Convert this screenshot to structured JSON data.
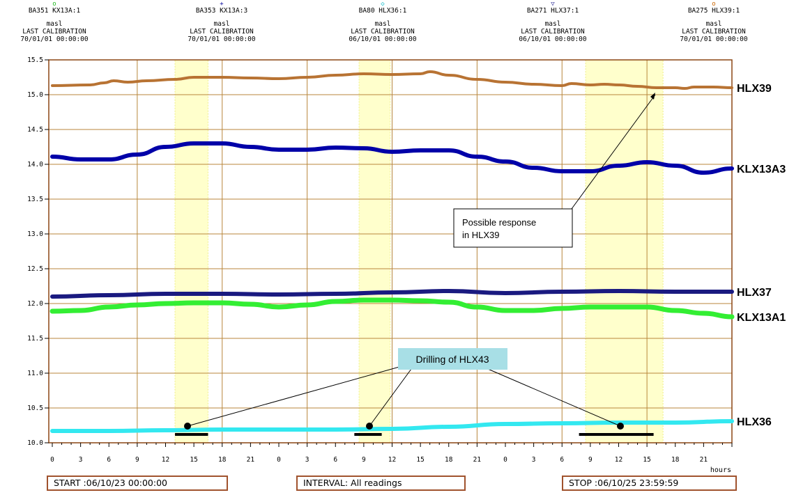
{
  "headers": [
    {
      "symbol": "o",
      "symbol_color": "#22bb22",
      "name": "BA351 KX13A:1",
      "unit": "masl",
      "cal_label": "LAST CALIBRATION",
      "cal_date": "70/01/01 00:00:00"
    },
    {
      "symbol": "+",
      "symbol_color": "#000099",
      "name": "BA353 KX13A:3",
      "unit": "masl",
      "cal_label": "LAST CALIBRATION",
      "cal_date": "70/01/01 00:00:00"
    },
    {
      "symbol": "◇",
      "symbol_color": "#00b8c8",
      "name": "BA80  HLX36:1",
      "unit": "masl",
      "cal_label": "LAST CALIBRATION",
      "cal_date": "06/10/01 00:00:00"
    },
    {
      "symbol": "▽",
      "symbol_color": "#333399",
      "name": "BA271 HLX37:1",
      "unit": "masl",
      "cal_label": "LAST CALIBRATION",
      "cal_date": "06/10/01 00:00:00"
    },
    {
      "symbol": "o",
      "symbol_color": "#cc6600",
      "name": "BA275 HLX39:1",
      "unit": "masl",
      "cal_label": "LAST CALIBRATION",
      "cal_date": "70/01/01 00:00:00"
    }
  ],
  "footer": {
    "start": "START :06/10/23 00:00:00",
    "interval": "INTERVAL: All readings",
    "stop": "STOP :06/10/25 23:59:59"
  },
  "annotations": {
    "response": "Possible response\nin HLX39",
    "drilling": "Drilling of HLX43"
  },
  "chart_data": {
    "type": "line",
    "ylim": [
      10.0,
      15.5
    ],
    "yticks": [
      "10.0",
      "10.5",
      "11.0",
      "11.5",
      "12.0",
      "12.5",
      "13.0",
      "13.5",
      "14.0",
      "14.5",
      "15.0",
      "15.5"
    ],
    "xlim": [
      0,
      72
    ],
    "xtick_labels": [
      "0",
      "3",
      "6",
      "9",
      "12",
      "15",
      "18",
      "21",
      "0",
      "3",
      "6",
      "9",
      "12",
      "15",
      "18",
      "21",
      "0",
      "3",
      "6",
      "9",
      "12",
      "15",
      "18",
      "21"
    ],
    "xunit": "hours",
    "grid": true,
    "drilling_periods": [
      [
        13,
        16.5
      ],
      [
        8,
        10.9
      ],
      [
        7.8,
        15.7
      ]
    ],
    "series": [
      {
        "name": "HLX39",
        "color": "#b87333",
        "points": [
          [
            0,
            15.13
          ],
          [
            4,
            15.14
          ],
          [
            5.5,
            15.17
          ],
          [
            6.5,
            15.2
          ],
          [
            8,
            15.18
          ],
          [
            10,
            15.2
          ],
          [
            13,
            15.22
          ],
          [
            15,
            15.25
          ],
          [
            18,
            15.25
          ],
          [
            21,
            15.24
          ],
          [
            24,
            15.23
          ],
          [
            27,
            15.25
          ],
          [
            30,
            15.28
          ],
          [
            33,
            15.3
          ],
          [
            36,
            15.29
          ],
          [
            39,
            15.3
          ],
          [
            40,
            15.33
          ],
          [
            42,
            15.28
          ],
          [
            45,
            15.22
          ],
          [
            48,
            15.18
          ],
          [
            51,
            15.15
          ],
          [
            54,
            15.13
          ],
          [
            55,
            15.16
          ],
          [
            57,
            15.14
          ],
          [
            58.5,
            15.15
          ],
          [
            60,
            15.14
          ],
          [
            62,
            15.12
          ],
          [
            64,
            15.1
          ],
          [
            66,
            15.1
          ],
          [
            67,
            15.09
          ],
          [
            68,
            15.11
          ],
          [
            70,
            15.11
          ],
          [
            72,
            15.1
          ]
        ]
      },
      {
        "name": "KLX13A3",
        "color": "#0000a8",
        "points": [
          [
            0,
            14.11
          ],
          [
            3,
            14.07
          ],
          [
            6,
            14.07
          ],
          [
            9,
            14.14
          ],
          [
            12,
            14.25
          ],
          [
            15,
            14.3
          ],
          [
            18,
            14.3
          ],
          [
            21,
            14.25
          ],
          [
            24,
            14.21
          ],
          [
            27,
            14.21
          ],
          [
            30,
            14.24
          ],
          [
            33,
            14.23
          ],
          [
            36,
            14.18
          ],
          [
            39,
            14.2
          ],
          [
            42,
            14.2
          ],
          [
            45,
            14.11
          ],
          [
            48,
            14.04
          ],
          [
            51,
            13.95
          ],
          [
            54,
            13.9
          ],
          [
            57,
            13.9
          ],
          [
            60,
            13.98
          ],
          [
            63,
            14.03
          ],
          [
            66,
            13.98
          ],
          [
            69,
            13.88
          ],
          [
            72,
            13.94
          ]
        ]
      },
      {
        "name": "HLX37",
        "color": "#1a1a80",
        "points": [
          [
            0,
            12.1
          ],
          [
            6,
            12.12
          ],
          [
            12,
            12.14
          ],
          [
            18,
            12.14
          ],
          [
            24,
            12.13
          ],
          [
            30,
            12.14
          ],
          [
            36,
            12.16
          ],
          [
            42,
            12.18
          ],
          [
            48,
            12.15
          ],
          [
            54,
            12.17
          ],
          [
            60,
            12.18
          ],
          [
            66,
            12.17
          ],
          [
            72,
            12.17
          ]
        ]
      },
      {
        "name": "KLX13A1",
        "color": "#33ee33",
        "points": [
          [
            0,
            11.89
          ],
          [
            3,
            11.9
          ],
          [
            6,
            11.95
          ],
          [
            9,
            11.98
          ],
          [
            12,
            12.0
          ],
          [
            15,
            12.01
          ],
          [
            18,
            12.01
          ],
          [
            21,
            11.99
          ],
          [
            24,
            11.95
          ],
          [
            27,
            11.98
          ],
          [
            30,
            12.03
          ],
          [
            33,
            12.05
          ],
          [
            36,
            12.05
          ],
          [
            39,
            12.04
          ],
          [
            42,
            12.02
          ],
          [
            45,
            11.95
          ],
          [
            48,
            11.9
          ],
          [
            51,
            11.9
          ],
          [
            54,
            11.93
          ],
          [
            57,
            11.95
          ],
          [
            60,
            11.95
          ],
          [
            63,
            11.95
          ],
          [
            66,
            11.9
          ],
          [
            69,
            11.86
          ],
          [
            72,
            11.81
          ]
        ]
      },
      {
        "name": "HLX36",
        "color": "#33e8f0",
        "points": [
          [
            0,
            10.17
          ],
          [
            6,
            10.17
          ],
          [
            12,
            10.18
          ],
          [
            18,
            10.19
          ],
          [
            24,
            10.19
          ],
          [
            30,
            10.19
          ],
          [
            36,
            10.2
          ],
          [
            42,
            10.23
          ],
          [
            48,
            10.27
          ],
          [
            54,
            10.28
          ],
          [
            60,
            10.29
          ],
          [
            66,
            10.29
          ],
          [
            72,
            10.31
          ]
        ]
      }
    ]
  }
}
